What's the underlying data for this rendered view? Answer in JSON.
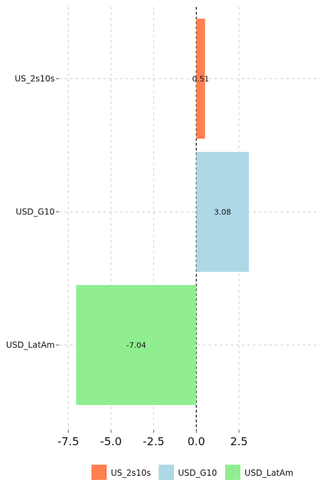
{
  "chart_data": {
    "type": "bar",
    "orientation": "horizontal",
    "categories": [
      "US_2s10s",
      "USD_G10",
      "USD_LatAm"
    ],
    "values": [
      0.51,
      3.08,
      -7.04
    ],
    "value_labels": [
      "0.51",
      "3.08",
      "-7.04"
    ],
    "colors": [
      "#FF7F50",
      "#ADD8E6",
      "#90EE90"
    ],
    "xlim": [
      -7.5,
      3.5
    ],
    "x_ticks": [
      -7.5,
      -5.0,
      -2.5,
      0.0,
      2.5
    ],
    "x_tick_labels": [
      "-7.5",
      "-5.0",
      "-2.5",
      "0.0",
      "2.5"
    ],
    "title": "",
    "xlabel": "",
    "ylabel": "",
    "grid": true,
    "zero_line": "dashed",
    "legend": {
      "position": "bottom",
      "entries": [
        "US_2s10s",
        "USD_G10",
        "USD_LatAm"
      ]
    }
  }
}
